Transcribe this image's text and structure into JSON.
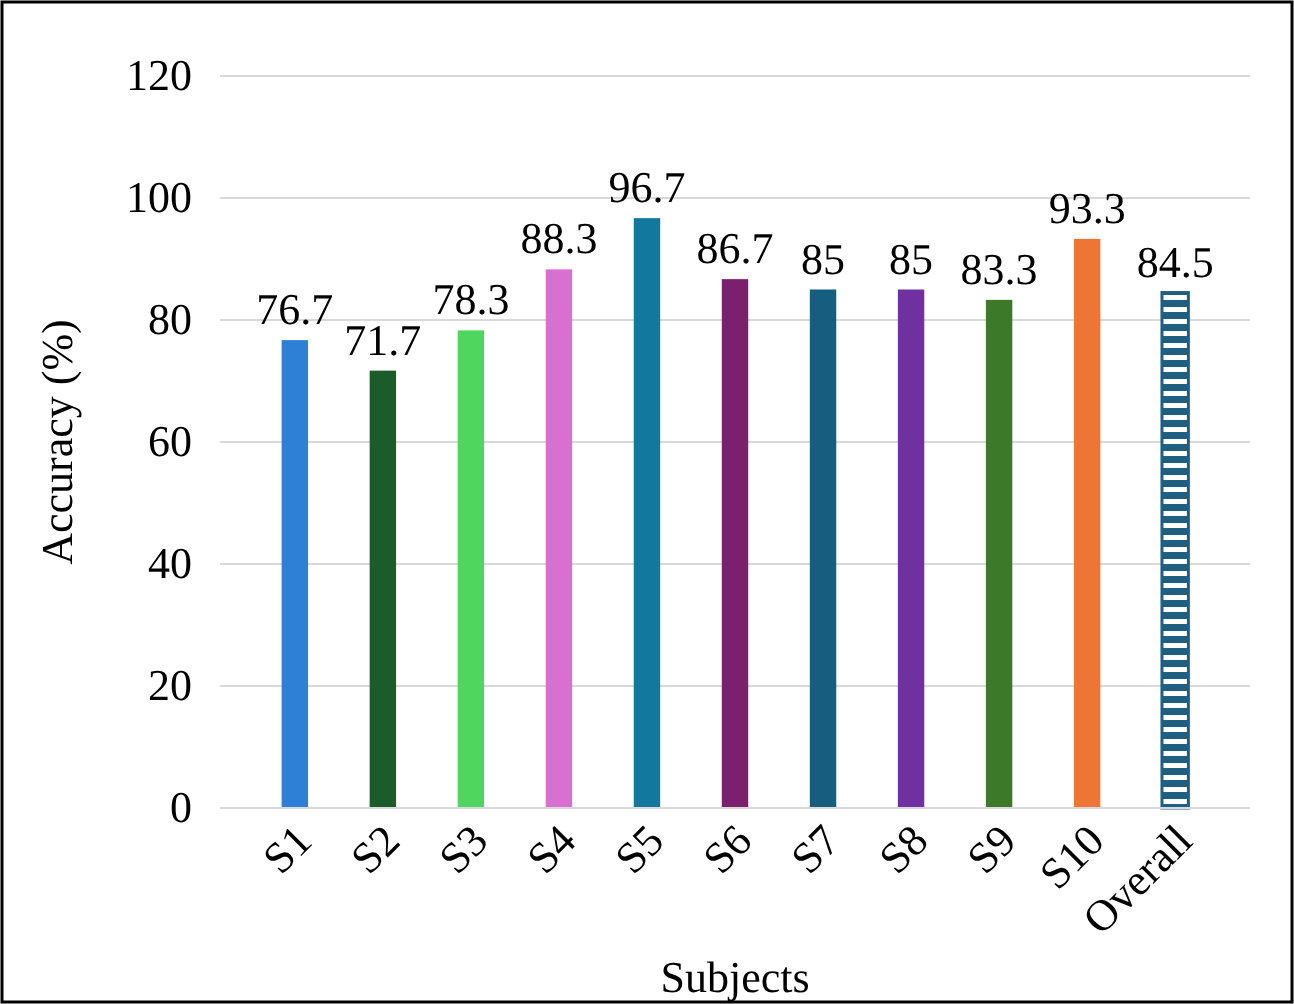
{
  "chart_data": {
    "type": "bar",
    "xlabel": "Subjects",
    "ylabel": "Accuracy (%)",
    "categories": [
      "S1",
      "S2",
      "S3",
      "S4",
      "S5",
      "S6",
      "S7",
      "S8",
      "S9",
      "S10",
      "Overall"
    ],
    "values": [
      76.7,
      71.7,
      78.3,
      88.3,
      96.7,
      86.7,
      85,
      85,
      83.3,
      93.3,
      84.5
    ],
    "colors": [
      "#2e7fd6",
      "#1a5c2a",
      "#4fd65f",
      "#d96fd0",
      "#13789e",
      "#7b1f6e",
      "#165e80",
      "#7030a0",
      "#3c7a2a",
      "#ed7535",
      "#1f5f80"
    ],
    "ylim": [
      0,
      120
    ],
    "yticks": [
      0,
      20,
      40,
      60,
      80,
      100,
      120
    ],
    "grid": "y",
    "data_labels": true
  }
}
